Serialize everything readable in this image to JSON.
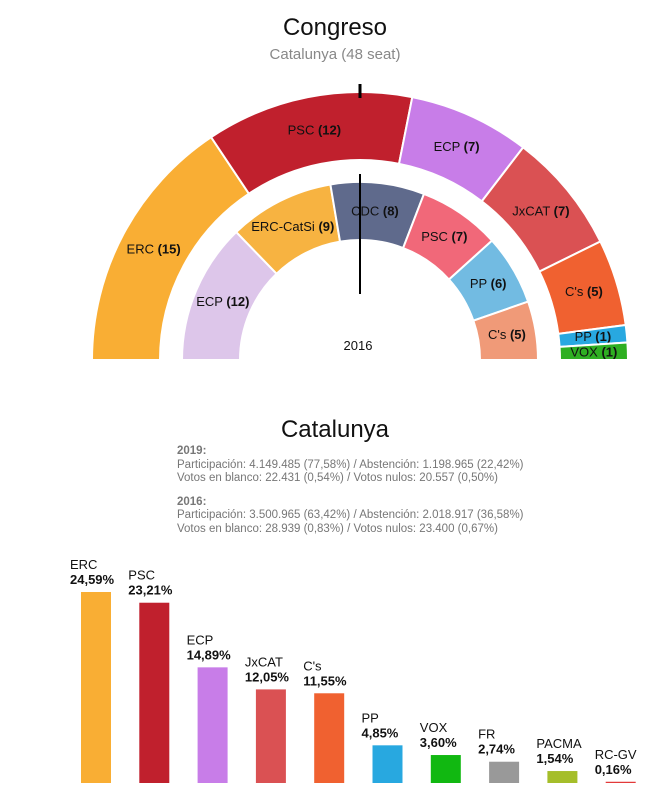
{
  "header": {
    "title": "Congreso",
    "subtitle": "Catalunya (48 seat)"
  },
  "chart_data": [
    {
      "type": "hemicycle",
      "title": "Congreso",
      "subtitle": "Catalunya (48 seat)",
      "total_seats": 48,
      "outer_ring": {
        "label": "",
        "parties": [
          {
            "name": "ERC",
            "seats": 15,
            "color": "#F9AE34"
          },
          {
            "name": "PSC",
            "seats": 12,
            "color": "#C0202D"
          },
          {
            "name": "ECP",
            "seats": 7,
            "color": "#C87DE8"
          },
          {
            "name": "JxCAT",
            "seats": 7,
            "color": "#DA5153"
          },
          {
            "name": "C's",
            "seats": 5,
            "color": "#F06130"
          },
          {
            "name": "PP",
            "seats": 1,
            "color": "#28A8E0"
          },
          {
            "name": "VOX",
            "seats": 1,
            "color": "#2EAF22"
          }
        ]
      },
      "inner_ring": {
        "label": "2016",
        "parties": [
          {
            "name": "ECP",
            "seats": 12,
            "color": "#DDC6EA"
          },
          {
            "name": "ERC-CatSi",
            "seats": 9,
            "color": "#F7B341"
          },
          {
            "name": "CDC",
            "seats": 8,
            "color": "#5F6A8C"
          },
          {
            "name": "PSC",
            "seats": 7,
            "color": "#F16879"
          },
          {
            "name": "PP",
            "seats": 6,
            "color": "#72BBE2"
          },
          {
            "name": "C's",
            "seats": 5,
            "color": "#F09A78"
          }
        ]
      }
    },
    {
      "type": "bar",
      "title": "Catalunya",
      "categories": [
        "ERC",
        "PSC",
        "ECP",
        "JxCAT",
        "C's",
        "PP",
        "VOX",
        "FR",
        "PACMA",
        "RC-GV"
      ],
      "values": [
        24.59,
        23.21,
        14.89,
        12.05,
        11.55,
        4.85,
        3.6,
        2.74,
        1.54,
        0.16
      ],
      "value_labels": [
        "24,59%",
        "23,21%",
        "14,89%",
        "12,05%",
        "11,55%",
        "4,85%",
        "3,60%",
        "2,74%",
        "1,54%",
        "0,16%"
      ],
      "colors": [
        "#F9AE34",
        "#C0202D",
        "#C87DE8",
        "#DA5153",
        "#F06130",
        "#28A8E0",
        "#11B811",
        "#999999",
        "#A5BE2A",
        "#E33A3A"
      ],
      "ylim": [
        0,
        24.59
      ]
    }
  ],
  "results": {
    "title": "Catalunya",
    "year_2019": {
      "label": "2019:",
      "line1": "Participación: 4.149.485 (77,58%) / Abstención: 1.198.965 (22,42%)",
      "line2": "Votos en blanco: 22.431 (0,54%) / Votos nulos: 20.557 (0,50%)"
    },
    "year_2016": {
      "label": "2016:",
      "line1": "Participación: 3.500.965 (63,42%) / Abstención: 2.018.917 (36,58%)",
      "line2": "Votos en blanco: 28.939 (0,83%) / Votos nulos: 23.400 (0,67%)"
    }
  }
}
